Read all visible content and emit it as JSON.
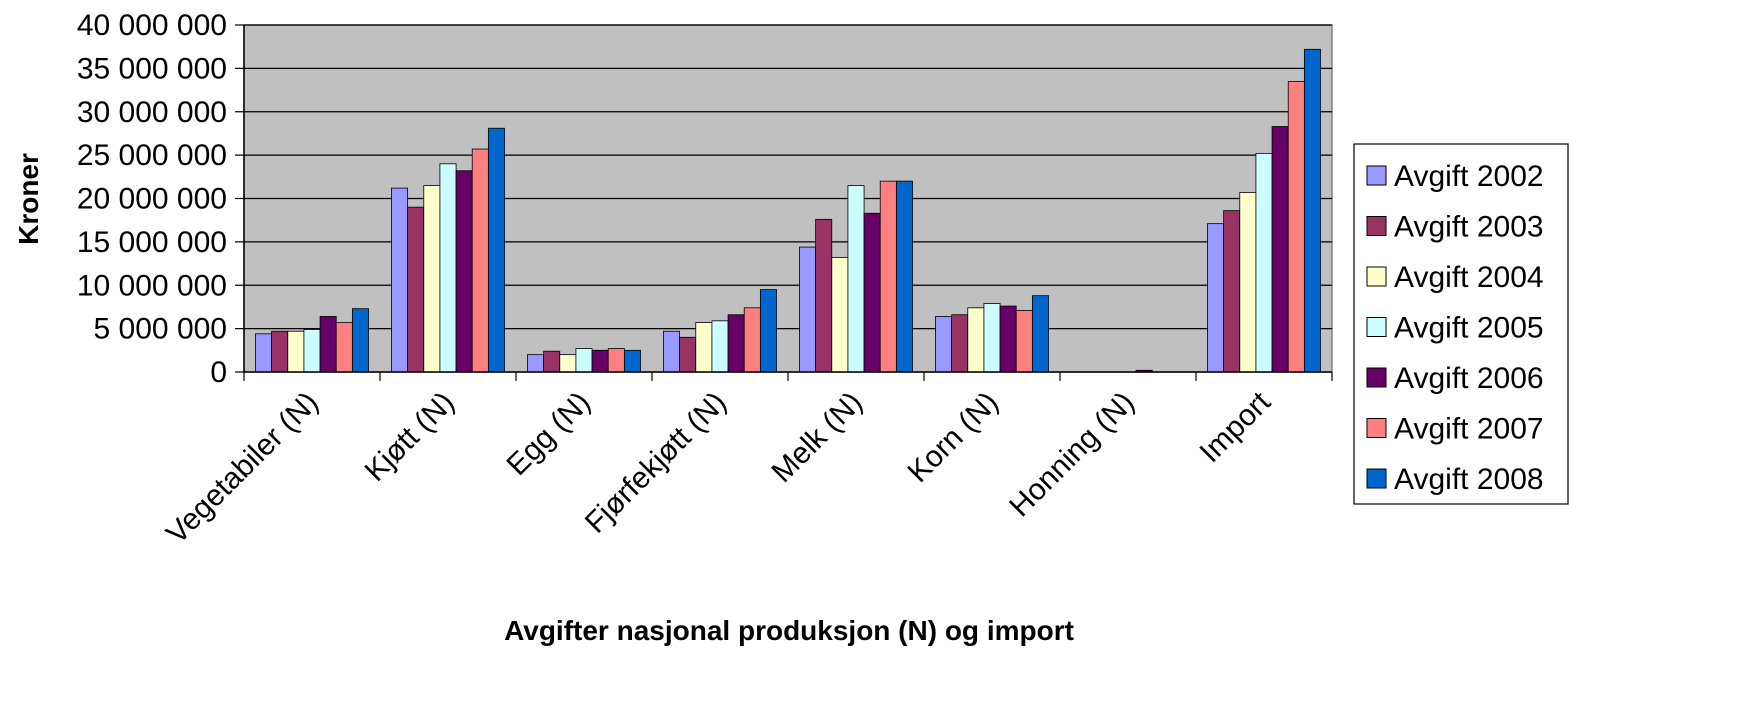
{
  "chart_data": {
    "type": "bar",
    "xlabel": "Avgifter nasjonal produksjon (N) og import",
    "ylabel": "Kroner",
    "ylim": [
      0,
      40000000
    ],
    "yticks": [
      0,
      5000000,
      10000000,
      15000000,
      20000000,
      25000000,
      30000000,
      35000000,
      40000000
    ],
    "ytick_labels": [
      "0",
      "5 000 000",
      "10 000 000",
      "15 000 000",
      "20 000 000",
      "25 000 000",
      "30 000 000",
      "35 000 000",
      "40 000 000"
    ],
    "categories": [
      "Vegetabiler (N)",
      "Kjøtt (N)",
      "Egg (N)",
      "Fjørfekjøtt (N)",
      "Melk (N)",
      "Korn (N)",
      "Honning (N)",
      "Import"
    ],
    "grid": true,
    "plot_background": "#c0c0c0",
    "legend_position": "right",
    "series": [
      {
        "name": "Avgift 2002",
        "color": "#9999ff",
        "values": [
          4400000,
          21200000,
          2000000,
          4700000,
          14400000,
          6400000,
          0,
          17100000
        ]
      },
      {
        "name": "Avgift 2003",
        "color": "#993366",
        "values": [
          4700000,
          19000000,
          2400000,
          4000000,
          17600000,
          6600000,
          0,
          18600000
        ]
      },
      {
        "name": "Avgift 2004",
        "color": "#ffffcc",
        "values": [
          4700000,
          21500000,
          2000000,
          5700000,
          13200000,
          7400000,
          0,
          20700000
        ]
      },
      {
        "name": "Avgift 2005",
        "color": "#ccffff",
        "values": [
          4900000,
          24000000,
          2700000,
          5900000,
          21500000,
          7900000,
          0,
          25200000
        ]
      },
      {
        "name": "Avgift 2006",
        "color": "#660066",
        "values": [
          6400000,
          23200000,
          2500000,
          6600000,
          18300000,
          7600000,
          200000,
          28300000
        ]
      },
      {
        "name": "Avgift 2007",
        "color": "#ff8080",
        "values": [
          5700000,
          25700000,
          2700000,
          7400000,
          22000000,
          7100000,
          0,
          33500000
        ]
      },
      {
        "name": "Avgift 2008",
        "color": "#0066cc",
        "values": [
          7300000,
          28100000,
          2500000,
          9500000,
          22000000,
          8800000,
          0,
          37200000
        ]
      }
    ]
  }
}
